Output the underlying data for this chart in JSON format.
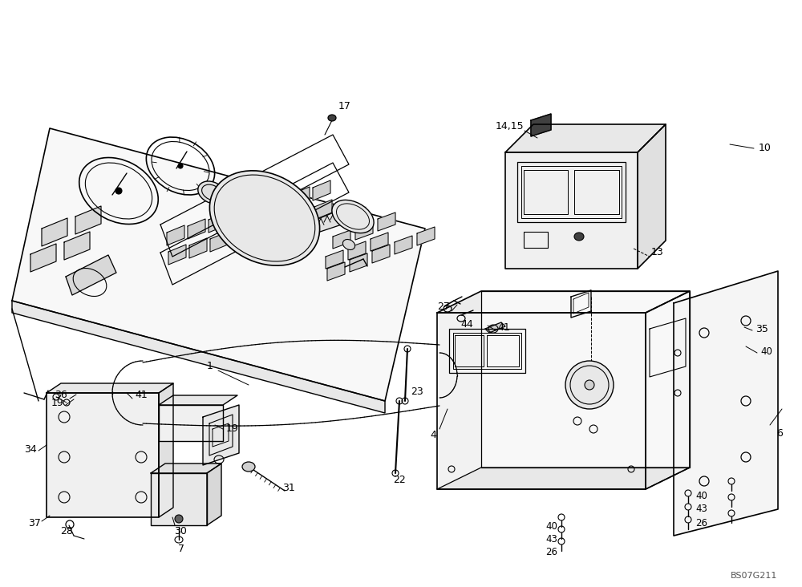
{
  "bg_color": "#ffffff",
  "line_color": "#000000",
  "figure_width": 10.0,
  "figure_height": 7.32,
  "dpi": 100,
  "watermark": "BS07G211"
}
